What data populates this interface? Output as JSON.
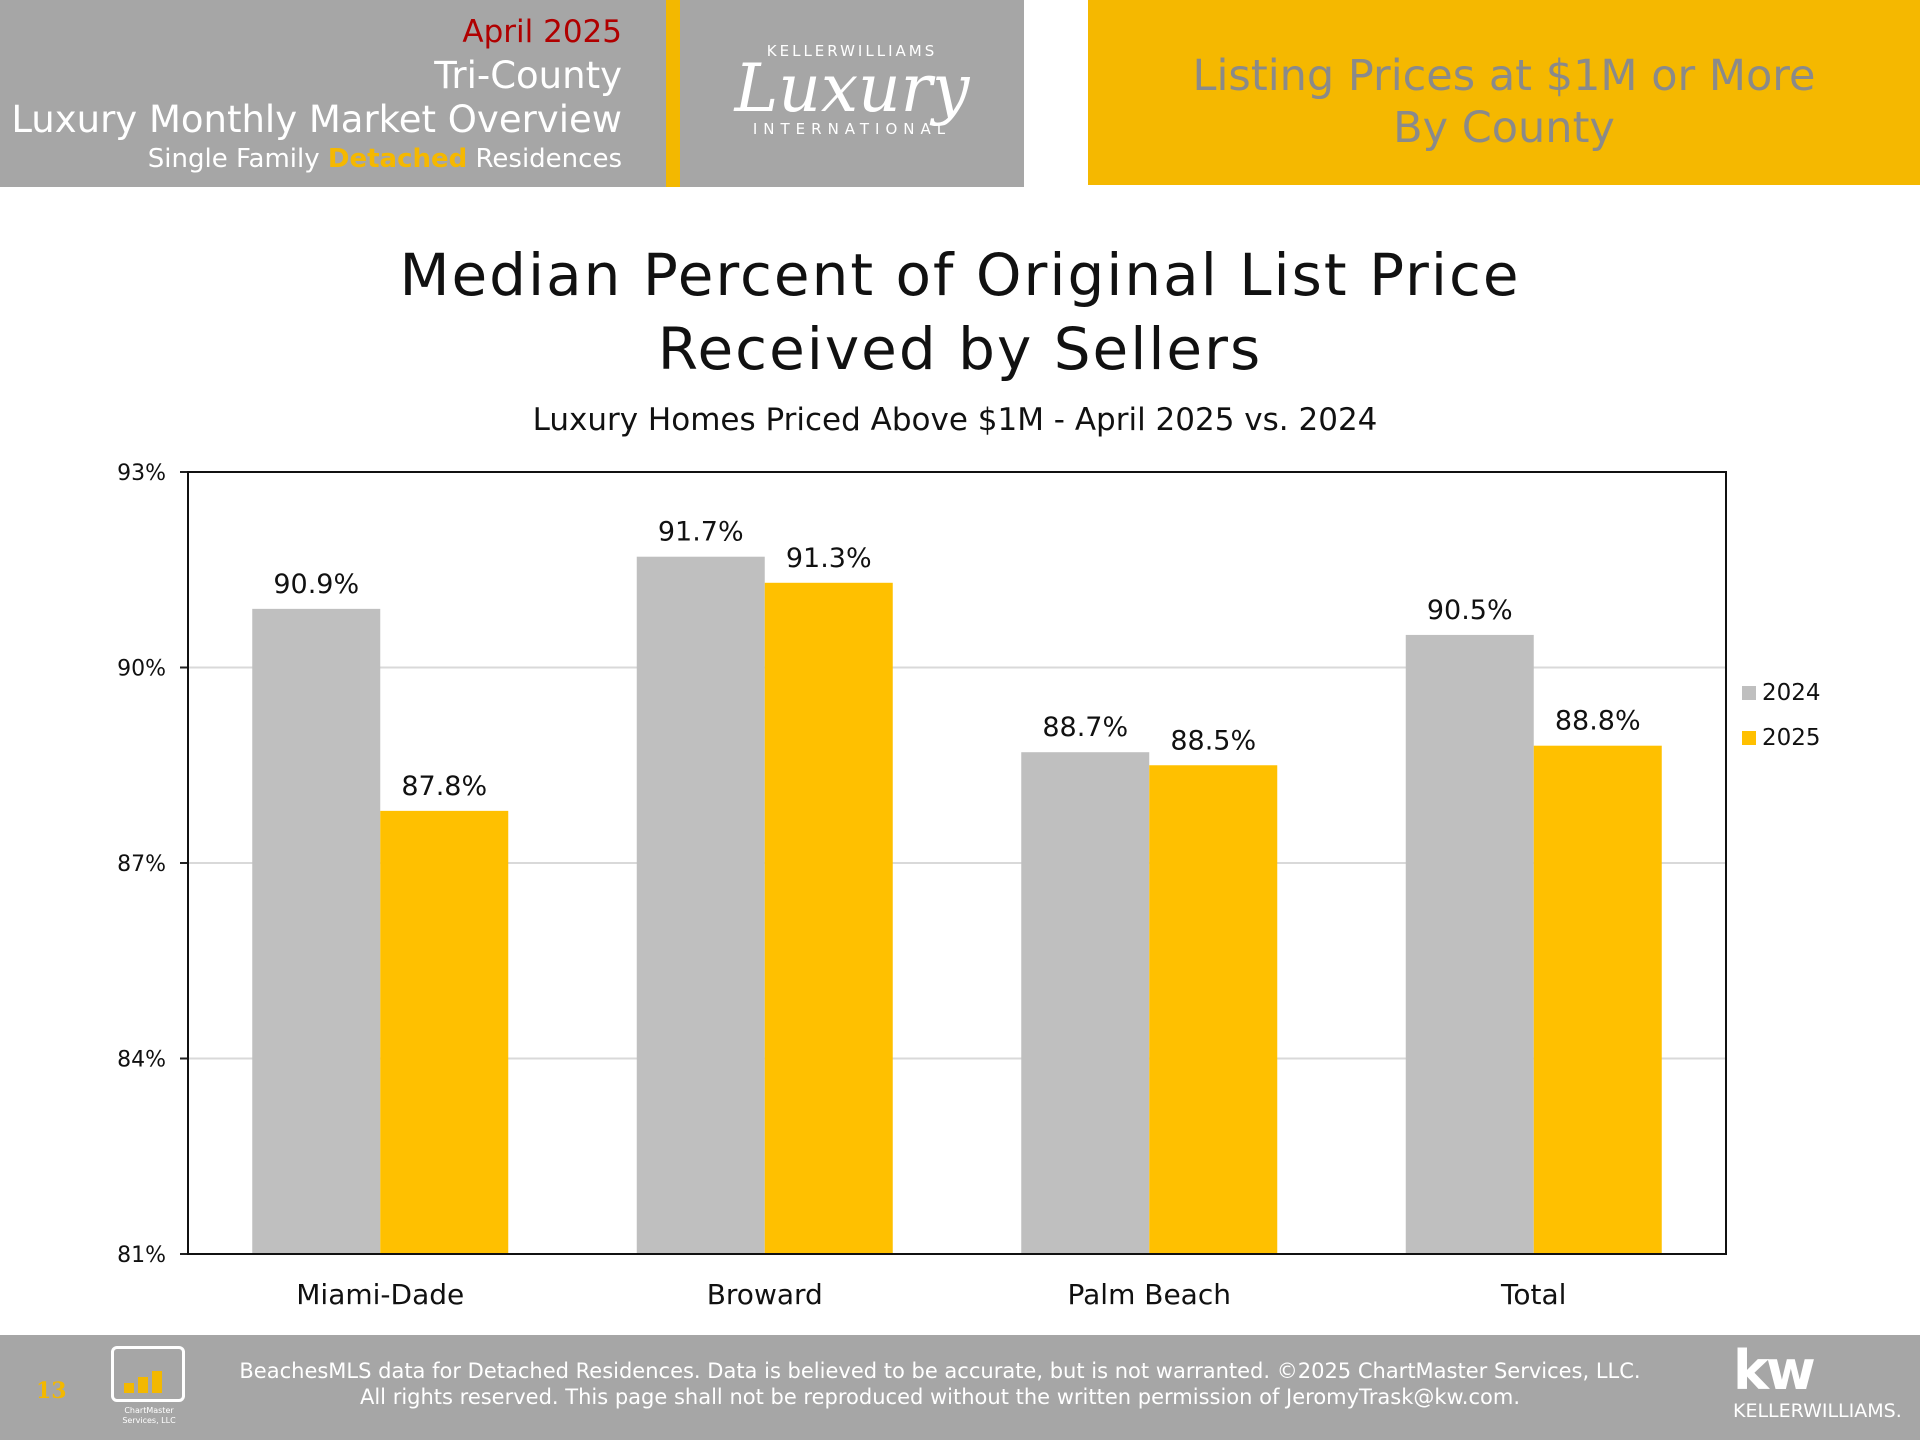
{
  "header": {
    "date": "April 2025",
    "region": "Tri-County",
    "title": "Luxury Monthly Market Overview",
    "subtitle_pre": "Single Family ",
    "subtitle_highlight": "Detached",
    "subtitle_post": " Residences",
    "logo_top": "KELLERWILLIAMS",
    "logo_script": "Luxury",
    "logo_bottom": "INTERNATIONAL",
    "right_line1": "Listing Prices at $1M or More",
    "right_line2": "By County"
  },
  "chart_data": {
    "type": "bar",
    "title_line1": "Median Percent of Original List Price",
    "title_line2": "Received by Sellers",
    "subtitle": "Luxury Homes Priced Above $1M - April 2025 vs. 2024",
    "categories": [
      "Miami-Dade",
      "Broward",
      "Palm Beach",
      "Total"
    ],
    "series": [
      {
        "name": "2024",
        "values": [
          90.9,
          91.7,
          88.7,
          90.5
        ],
        "labels": [
          "90.9%",
          "91.7%",
          "88.7%",
          "90.5%"
        ],
        "color": "#bfbfbf"
      },
      {
        "name": "2025",
        "values": [
          87.8,
          91.3,
          88.5,
          88.8
        ],
        "labels": [
          "87.8%",
          "91.3%",
          "88.5%",
          "88.8%"
        ],
        "color": "#ffc000"
      }
    ],
    "ylim": [
      81,
      93
    ],
    "yticks": [
      81,
      84,
      87,
      90,
      93
    ],
    "ytick_labels": [
      "81%",
      "84%",
      "87%",
      "90%",
      "93%"
    ],
    "grid": true,
    "legend": "right"
  },
  "footer": {
    "page_number": "13",
    "line1": "BeachesMLS data for Detached Residences.  Data is believed to be accurate, but is not warranted.   ©2025  ChartMaster Services, LLC.",
    "line2": "All rights reserved. This page shall not be reproduced without the written permission of JeromyTrask@kw.com.",
    "cm_logo_caption_1": "ChartMaster",
    "cm_logo_caption_2": "Services, LLC",
    "kw_mark": "kw",
    "kw_name": "KELLERWILLIAMS."
  }
}
